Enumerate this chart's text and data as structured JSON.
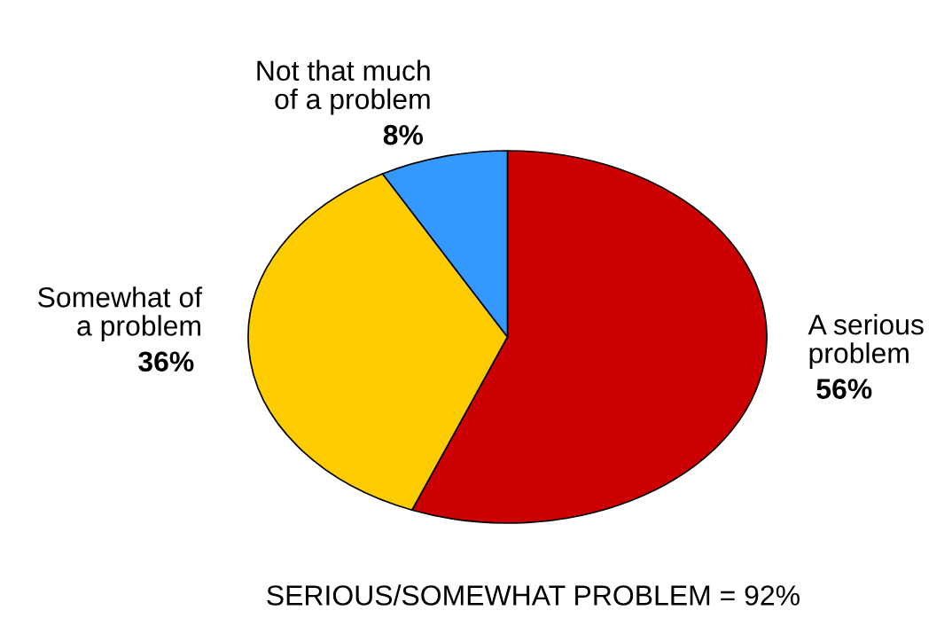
{
  "chart_data": {
    "type": "pie",
    "categories": [
      "A serious\nproblem",
      "Somewhat of\na problem",
      "Not that much\nof a problem"
    ],
    "values": [
      56,
      36,
      8
    ],
    "colors": [
      "#cc0000",
      "#ffcc00",
      "#3399ff"
    ],
    "value_labels": [
      "56%",
      "36%",
      "8%"
    ],
    "annotations": [
      "SERIOUS/SOMEWHAT PROBLEM = 92%"
    ]
  }
}
